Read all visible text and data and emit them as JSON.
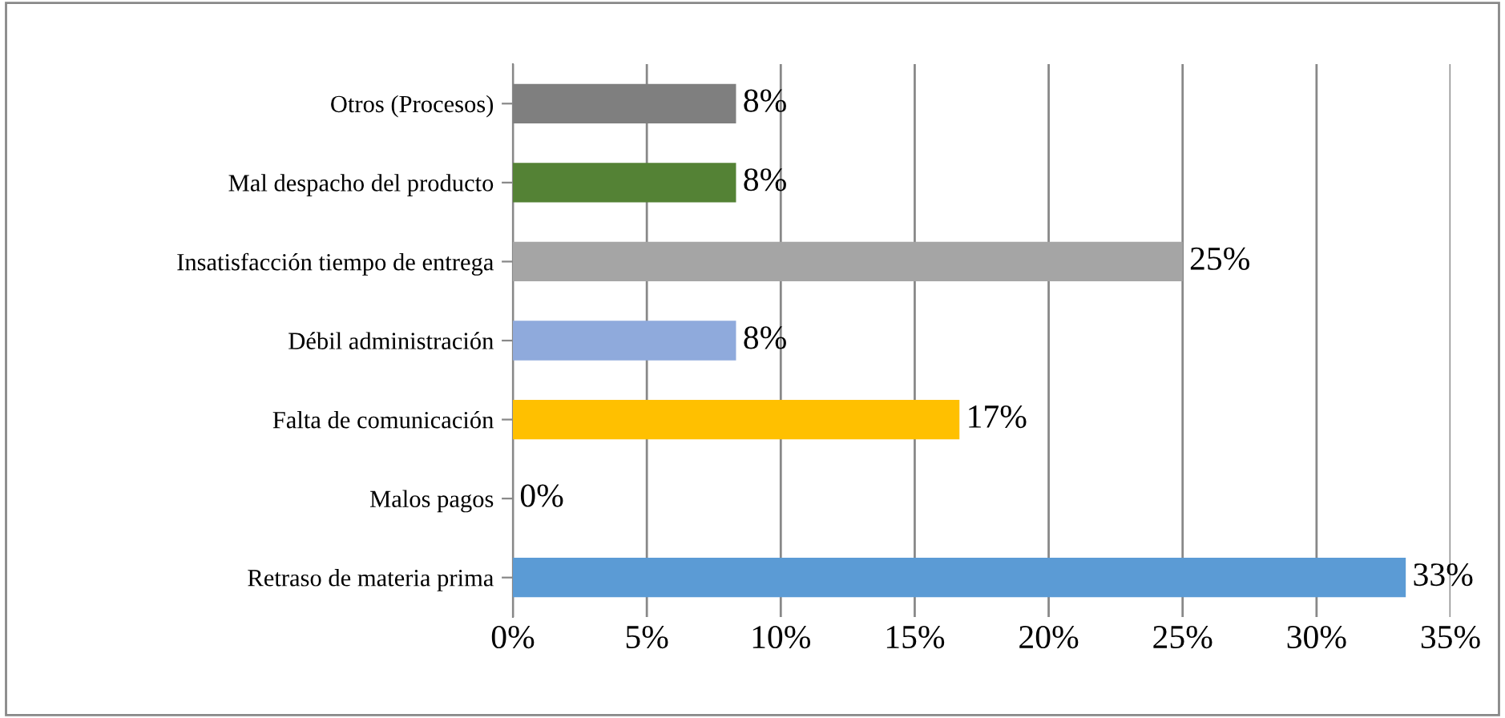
{
  "chart_data": {
    "type": "bar",
    "orientation": "horizontal",
    "categories": [
      "Otros (Procesos)",
      "Mal despacho del producto",
      "Insatisfacción tiempo de entrega",
      "Débil administración",
      "Falta de comunicación",
      "Malos pagos",
      "Retraso de materia prima"
    ],
    "values": [
      8.33,
      8.33,
      25,
      8.33,
      16.67,
      0,
      33.33
    ],
    "value_labels": [
      "8%",
      "8%",
      "25%",
      "8%",
      "17%",
      "0%",
      "33%"
    ],
    "colors": [
      "#7f7f7f",
      "#548235",
      "#a5a5a5",
      "#8faadc",
      "#ffc000",
      "#5b9bd5",
      "#5b9bd5"
    ],
    "xlim": [
      0,
      35
    ],
    "xticks": [
      {
        "value": 0,
        "label": "0%"
      },
      {
        "value": 5,
        "label": "5%"
      },
      {
        "value": 10,
        "label": "10%"
      },
      {
        "value": 15,
        "label": "15%"
      },
      {
        "value": 20,
        "label": "20%"
      },
      {
        "value": 25,
        "label": "25%"
      },
      {
        "value": 30,
        "label": "30%"
      },
      {
        "value": 35,
        "label": "35%"
      }
    ],
    "grid": "x",
    "legend": false
  }
}
